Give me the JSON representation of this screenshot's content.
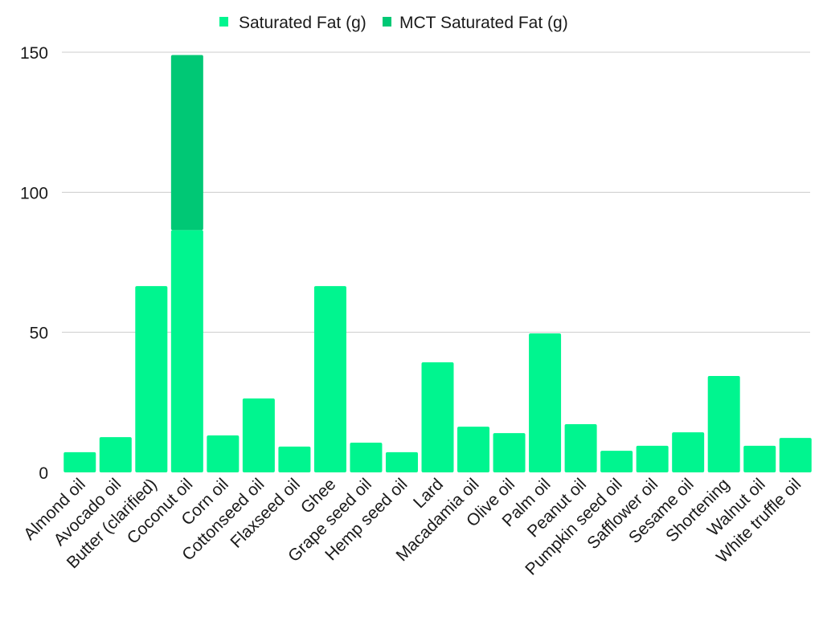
{
  "chart_data": {
    "type": "bar",
    "stacked": true,
    "title": "",
    "xlabel": "",
    "ylabel": "",
    "ylim": [
      0,
      150
    ],
    "yticks": [
      0,
      50,
      100,
      150
    ],
    "grid": true,
    "legend_placement": "top",
    "categories": [
      "Almond oil",
      "Avocado oil",
      "Butter (clarified)",
      "Coconut oil",
      "Corn oil",
      "Cottonseed oil",
      "Flaxseed oil",
      "Ghee",
      "Grape seed oil",
      "Hemp seed oil",
      "Lard",
      "Macadamia oil",
      "Olive oil",
      "Palm oil",
      "Peanut oil",
      "Pumpkin seed oil",
      "Safflower oil",
      "Sesame oil",
      "Shortening",
      "Walnut oil",
      "White truffle oil"
    ],
    "series": [
      {
        "name": "Saturated Fat (g)",
        "color": "#00F58F",
        "values": [
          7.2,
          12.6,
          66.5,
          86.5,
          13.2,
          26.4,
          9.2,
          66.5,
          10.6,
          7.2,
          39.3,
          16.3,
          14.0,
          49.6,
          17.2,
          7.7,
          9.5,
          14.3,
          34.4,
          9.5,
          12.3
        ]
      },
      {
        "name": "MCT Saturated Fat (g)",
        "color": "#00C875",
        "values": [
          0,
          0,
          0,
          62.5,
          0,
          0,
          0,
          0,
          0,
          0,
          0,
          0,
          0,
          0,
          0,
          0,
          0,
          0,
          0,
          0,
          0
        ]
      }
    ]
  }
}
